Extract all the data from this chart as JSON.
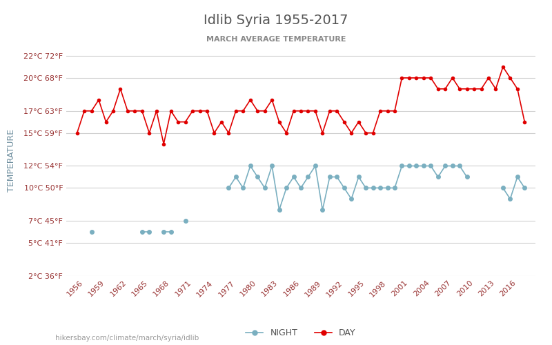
{
  "title": "Idlib Syria 1955-2017",
  "subtitle": "MARCH AVERAGE TEMPERATURE",
  "ylabel": "TEMPERATURE",
  "footer": "hikersbay.com/climate/march/syria/idlib",
  "legend_night": "NIGHT",
  "legend_day": "DAY",
  "years": [
    1955,
    1956,
    1957,
    1958,
    1959,
    1960,
    1961,
    1962,
    1963,
    1964,
    1965,
    1966,
    1967,
    1968,
    1969,
    1970,
    1971,
    1972,
    1973,
    1974,
    1975,
    1976,
    1977,
    1978,
    1979,
    1980,
    1981,
    1982,
    1983,
    1984,
    1985,
    1986,
    1987,
    1988,
    1989,
    1990,
    1991,
    1992,
    1993,
    1994,
    1995,
    1996,
    1997,
    1998,
    1999,
    2000,
    2001,
    2002,
    2003,
    2004,
    2005,
    2006,
    2007,
    2008,
    2009,
    2010,
    2011,
    2012,
    2013,
    2014,
    2015,
    2016,
    2017
  ],
  "day": [
    15,
    17,
    17,
    18,
    16,
    17,
    19,
    17,
    17,
    17,
    15,
    17,
    14,
    17,
    16,
    16,
    17,
    17,
    17,
    15,
    16,
    15,
    17,
    17,
    18,
    17,
    17,
    18,
    16,
    15,
    17,
    17,
    17,
    17,
    15,
    17,
    17,
    16,
    15,
    16,
    15,
    15,
    17,
    17,
    17,
    20,
    20,
    20,
    20,
    20,
    19,
    19,
    20,
    19,
    19,
    19,
    19,
    20,
    19,
    21,
    20,
    19,
    16
  ],
  "night": [
    null,
    null,
    6,
    null,
    null,
    null,
    null,
    null,
    null,
    6,
    6,
    null,
    6,
    6,
    null,
    7,
    null,
    null,
    null,
    null,
    null,
    10,
    11,
    10,
    12,
    11,
    10,
    12,
    8,
    10,
    11,
    10,
    11,
    12,
    8,
    11,
    11,
    10,
    9,
    11,
    10,
    10,
    10,
    10,
    10,
    12,
    12,
    12,
    12,
    12,
    11,
    12,
    12,
    12,
    11,
    null,
    null,
    null,
    null,
    10,
    9,
    11,
    10
  ],
  "ylim_min": 2,
  "ylim_max": 23,
  "yticks_c": [
    2,
    5,
    7,
    10,
    12,
    15,
    17,
    20,
    22
  ],
  "yticks_f": [
    36,
    41,
    45,
    50,
    54,
    59,
    63,
    68,
    72
  ],
  "background_color": "#ffffff",
  "day_color": "#e00000",
  "night_color": "#7aafc0",
  "grid_color": "#d0d0d0",
  "title_color": "#555555",
  "subtitle_color": "#888888",
  "ylabel_color": "#7090a0",
  "tick_color": "#993333",
  "footer_color": "#999999"
}
